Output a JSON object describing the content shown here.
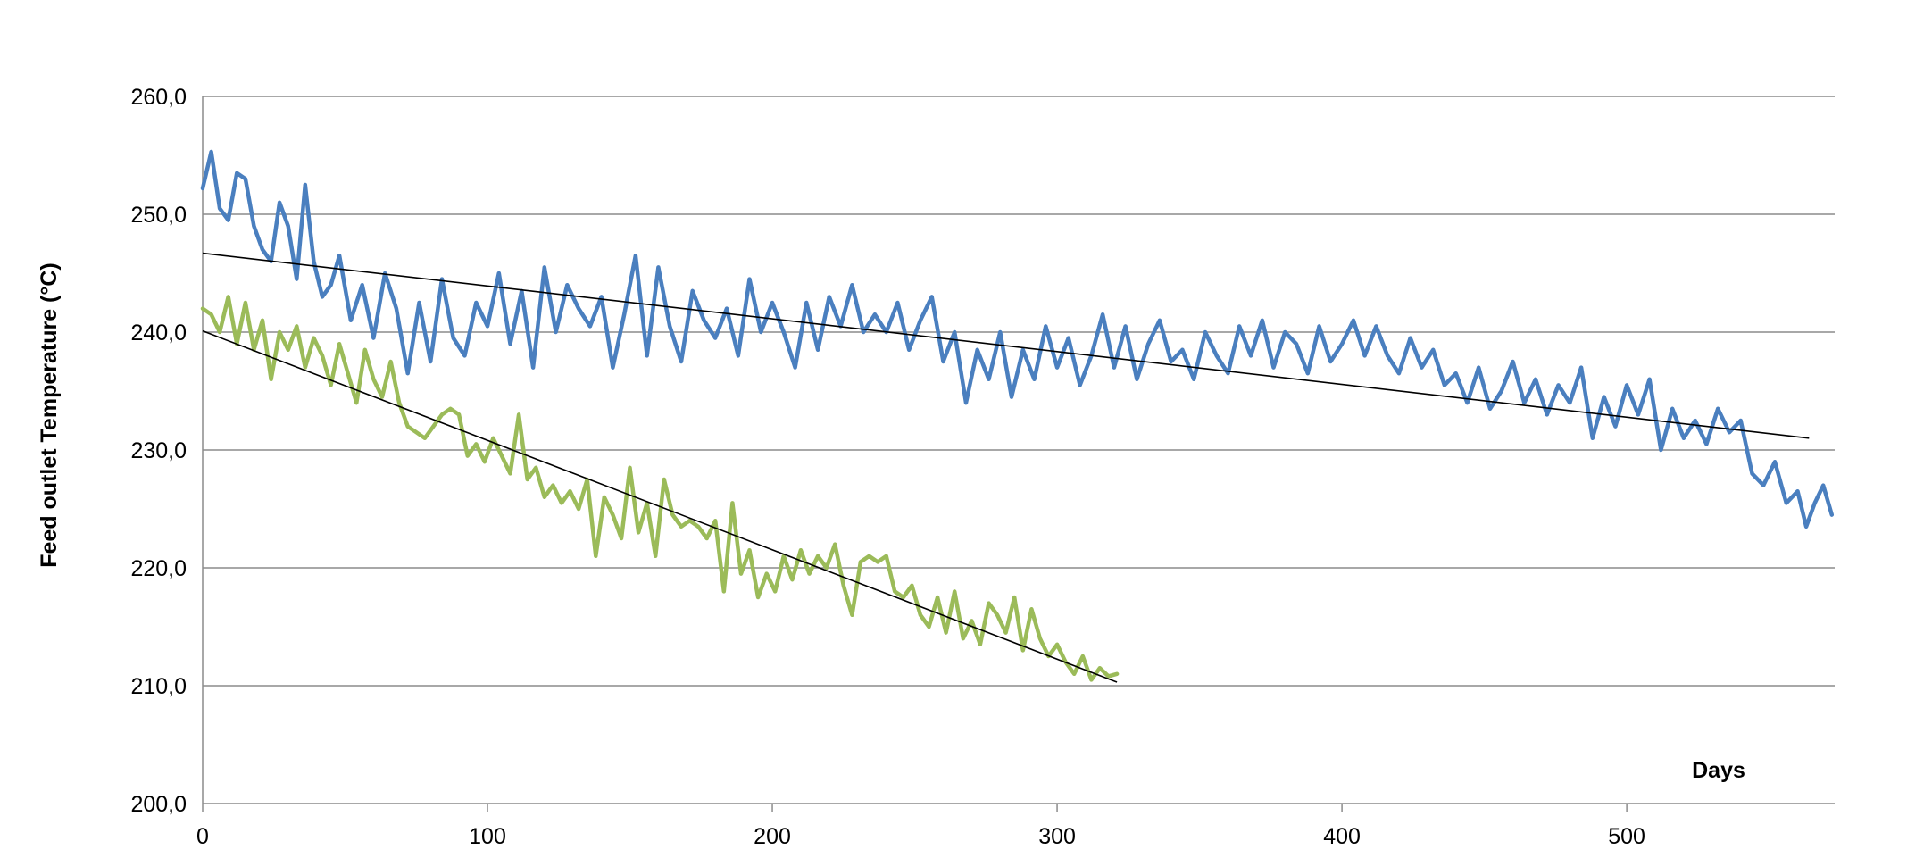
{
  "chart_data": {
    "type": "line",
    "xlabel": "Days",
    "ylabel": "Feed outlet Temperature (°C)",
    "xlim": [
      0,
      573
    ],
    "ylim": [
      200,
      260
    ],
    "x_ticks": [
      0,
      100,
      200,
      300,
      400,
      500
    ],
    "x_tick_labels": [
      "0",
      "100",
      "200",
      "300",
      "400",
      "500"
    ],
    "y_ticks": [
      200,
      210,
      220,
      230,
      240,
      250,
      260
    ],
    "y_tick_labels": [
      "200,0",
      "210,0",
      "220,0",
      "230,0",
      "240,0",
      "250,0",
      "260,0"
    ],
    "grid": "horizontal",
    "legend": "none",
    "series": [
      {
        "color": "#4a7fbf",
        "points": [
          [
            0,
            252.2
          ],
          [
            3,
            255.3
          ],
          [
            6,
            250.5
          ],
          [
            9,
            249.5
          ],
          [
            12,
            253.5
          ],
          [
            15,
            253.0
          ],
          [
            18,
            249.0
          ],
          [
            21,
            247.0
          ],
          [
            24,
            246.0
          ],
          [
            27,
            251.0
          ],
          [
            30,
            249.0
          ],
          [
            33,
            244.5
          ],
          [
            36,
            252.5
          ],
          [
            39,
            246.0
          ],
          [
            42,
            243.0
          ],
          [
            45,
            244.0
          ],
          [
            48,
            246.5
          ],
          [
            52,
            241.0
          ],
          [
            56,
            244.0
          ],
          [
            60,
            239.5
          ],
          [
            64,
            245.0
          ],
          [
            68,
            242.0
          ],
          [
            72,
            236.5
          ],
          [
            76,
            242.5
          ],
          [
            80,
            237.5
          ],
          [
            84,
            244.5
          ],
          [
            88,
            239.5
          ],
          [
            92,
            238.0
          ],
          [
            96,
            242.5
          ],
          [
            100,
            240.5
          ],
          [
            104,
            245.0
          ],
          [
            108,
            239.0
          ],
          [
            112,
            243.5
          ],
          [
            116,
            237.0
          ],
          [
            120,
            245.5
          ],
          [
            124,
            240.0
          ],
          [
            128,
            244.0
          ],
          [
            132,
            242.0
          ],
          [
            136,
            240.5
          ],
          [
            140,
            243.0
          ],
          [
            144,
            237.0
          ],
          [
            148,
            241.5
          ],
          [
            152,
            246.5
          ],
          [
            156,
            238.0
          ],
          [
            160,
            245.5
          ],
          [
            164,
            240.5
          ],
          [
            168,
            237.5
          ],
          [
            172,
            243.5
          ],
          [
            176,
            241.0
          ],
          [
            180,
            239.5
          ],
          [
            184,
            242.0
          ],
          [
            188,
            238.0
          ],
          [
            192,
            244.5
          ],
          [
            196,
            240.0
          ],
          [
            200,
            242.5
          ],
          [
            204,
            240.0
          ],
          [
            208,
            237.0
          ],
          [
            212,
            242.5
          ],
          [
            216,
            238.5
          ],
          [
            220,
            243.0
          ],
          [
            224,
            240.5
          ],
          [
            228,
            244.0
          ],
          [
            232,
            240.0
          ],
          [
            236,
            241.5
          ],
          [
            240,
            240.0
          ],
          [
            244,
            242.5
          ],
          [
            248,
            238.5
          ],
          [
            252,
            241.0
          ],
          [
            256,
            243.0
          ],
          [
            260,
            237.5
          ],
          [
            264,
            240.0
          ],
          [
            268,
            234.0
          ],
          [
            272,
            238.5
          ],
          [
            276,
            236.0
          ],
          [
            280,
            240.0
          ],
          [
            284,
            234.5
          ],
          [
            288,
            238.5
          ],
          [
            292,
            236.0
          ],
          [
            296,
            240.5
          ],
          [
            300,
            237.0
          ],
          [
            304,
            239.5
          ],
          [
            308,
            235.5
          ],
          [
            312,
            238.0
          ],
          [
            316,
            241.5
          ],
          [
            320,
            237.0
          ],
          [
            324,
            240.5
          ],
          [
            328,
            236.0
          ],
          [
            332,
            239.0
          ],
          [
            336,
            241.0
          ],
          [
            340,
            237.5
          ],
          [
            344,
            238.5
          ],
          [
            348,
            236.0
          ],
          [
            352,
            240.0
          ],
          [
            356,
            238.0
          ],
          [
            360,
            236.5
          ],
          [
            364,
            240.5
          ],
          [
            368,
            238.0
          ],
          [
            372,
            241.0
          ],
          [
            376,
            237.0
          ],
          [
            380,
            240.0
          ],
          [
            384,
            239.0
          ],
          [
            388,
            236.5
          ],
          [
            392,
            240.5
          ],
          [
            396,
            237.5
          ],
          [
            400,
            239.0
          ],
          [
            404,
            241.0
          ],
          [
            408,
            238.0
          ],
          [
            412,
            240.5
          ],
          [
            416,
            238.0
          ],
          [
            420,
            236.5
          ],
          [
            424,
            239.5
          ],
          [
            428,
            237.0
          ],
          [
            432,
            238.5
          ],
          [
            436,
            235.5
          ],
          [
            440,
            236.5
          ],
          [
            444,
            234.0
          ],
          [
            448,
            237.0
          ],
          [
            452,
            233.5
          ],
          [
            456,
            235.0
          ],
          [
            460,
            237.5
          ],
          [
            464,
            234.0
          ],
          [
            468,
            236.0
          ],
          [
            472,
            233.0
          ],
          [
            476,
            235.5
          ],
          [
            480,
            234.0
          ],
          [
            484,
            237.0
          ],
          [
            488,
            231.0
          ],
          [
            492,
            234.5
          ],
          [
            496,
            232.0
          ],
          [
            500,
            235.5
          ],
          [
            504,
            233.0
          ],
          [
            508,
            236.0
          ],
          [
            512,
            230.0
          ],
          [
            516,
            233.5
          ],
          [
            520,
            231.0
          ],
          [
            524,
            232.5
          ],
          [
            528,
            230.5
          ],
          [
            532,
            233.5
          ],
          [
            536,
            231.5
          ],
          [
            540,
            232.5
          ],
          [
            544,
            228.0
          ],
          [
            548,
            227.0
          ],
          [
            552,
            229.0
          ],
          [
            556,
            225.5
          ],
          [
            560,
            226.5
          ],
          [
            563,
            223.5
          ],
          [
            566,
            225.5
          ],
          [
            569,
            227.0
          ],
          [
            572,
            224.5
          ]
        ]
      },
      {
        "color": "#9bbb59",
        "points": [
          [
            0,
            242.0
          ],
          [
            3,
            241.5
          ],
          [
            6,
            240.0
          ],
          [
            9,
            243.0
          ],
          [
            12,
            239.0
          ],
          [
            15,
            242.5
          ],
          [
            18,
            238.5
          ],
          [
            21,
            241.0
          ],
          [
            24,
            236.0
          ],
          [
            27,
            240.0
          ],
          [
            30,
            238.5
          ],
          [
            33,
            240.5
          ],
          [
            36,
            237.0
          ],
          [
            39,
            239.5
          ],
          [
            42,
            238.0
          ],
          [
            45,
            235.5
          ],
          [
            48,
            239.0
          ],
          [
            51,
            236.5
          ],
          [
            54,
            234.0
          ],
          [
            57,
            238.5
          ],
          [
            60,
            236.0
          ],
          [
            63,
            234.5
          ],
          [
            66,
            237.5
          ],
          [
            69,
            234.0
          ],
          [
            72,
            232.0
          ],
          [
            75,
            231.5
          ],
          [
            78,
            231.0
          ],
          [
            81,
            232.0
          ],
          [
            84,
            233.0
          ],
          [
            87,
            233.5
          ],
          [
            90,
            233.0
          ],
          [
            93,
            229.5
          ],
          [
            96,
            230.5
          ],
          [
            99,
            229.0
          ],
          [
            102,
            231.0
          ],
          [
            105,
            229.5
          ],
          [
            108,
            228.0
          ],
          [
            111,
            233.0
          ],
          [
            114,
            227.5
          ],
          [
            117,
            228.5
          ],
          [
            120,
            226.0
          ],
          [
            123,
            227.0
          ],
          [
            126,
            225.5
          ],
          [
            129,
            226.5
          ],
          [
            132,
            225.0
          ],
          [
            135,
            227.5
          ],
          [
            138,
            221.0
          ],
          [
            141,
            226.0
          ],
          [
            144,
            224.5
          ],
          [
            147,
            222.5
          ],
          [
            150,
            228.5
          ],
          [
            153,
            223.0
          ],
          [
            156,
            225.5
          ],
          [
            159,
            221.0
          ],
          [
            162,
            227.5
          ],
          [
            165,
            224.5
          ],
          [
            168,
            223.5
          ],
          [
            171,
            224.0
          ],
          [
            174,
            223.5
          ],
          [
            177,
            222.5
          ],
          [
            180,
            224.0
          ],
          [
            183,
            218.0
          ],
          [
            186,
            225.5
          ],
          [
            189,
            219.5
          ],
          [
            192,
            221.5
          ],
          [
            195,
            217.5
          ],
          [
            198,
            219.5
          ],
          [
            201,
            218.0
          ],
          [
            204,
            221.0
          ],
          [
            207,
            219.0
          ],
          [
            210,
            221.5
          ],
          [
            213,
            219.5
          ],
          [
            216,
            221.0
          ],
          [
            219,
            220.0
          ],
          [
            222,
            222.0
          ],
          [
            225,
            218.5
          ],
          [
            228,
            216.0
          ],
          [
            231,
            220.5
          ],
          [
            234,
            221.0
          ],
          [
            237,
            220.5
          ],
          [
            240,
            221.0
          ],
          [
            243,
            218.0
          ],
          [
            246,
            217.5
          ],
          [
            249,
            218.5
          ],
          [
            252,
            216.0
          ],
          [
            255,
            215.0
          ],
          [
            258,
            217.5
          ],
          [
            261,
            214.5
          ],
          [
            264,
            218.0
          ],
          [
            267,
            214.0
          ],
          [
            270,
            215.5
          ],
          [
            273,
            213.5
          ],
          [
            276,
            217.0
          ],
          [
            279,
            216.0
          ],
          [
            282,
            214.5
          ],
          [
            285,
            217.5
          ],
          [
            288,
            213.0
          ],
          [
            291,
            216.5
          ],
          [
            294,
            214.0
          ],
          [
            297,
            212.5
          ],
          [
            300,
            213.5
          ],
          [
            303,
            212.0
          ],
          [
            306,
            211.0
          ],
          [
            309,
            212.5
          ],
          [
            312,
            210.5
          ],
          [
            315,
            211.5
          ],
          [
            318,
            210.8
          ],
          [
            321,
            211.0
          ]
        ]
      }
    ],
    "trendlines": [
      {
        "from": [
          0,
          246.7
        ],
        "to": [
          564,
          231.0
        ],
        "color": "#000000"
      },
      {
        "from": [
          0,
          240.1
        ],
        "to": [
          321,
          210.3
        ],
        "color": "#000000"
      }
    ]
  }
}
